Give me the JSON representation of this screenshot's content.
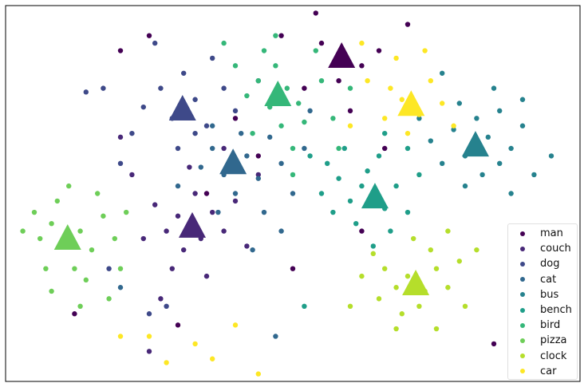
{
  "chart_data": {
    "type": "scatter",
    "title": "",
    "xlabel": "",
    "ylabel": "",
    "xlim": [
      0,
      100
    ],
    "ylim": [
      0,
      100
    ],
    "axes_ticks": false,
    "grid": false,
    "legend_placement": "lower-right",
    "centroid_marker": "triangle",
    "series": [
      {
        "name": "man",
        "color": "#440154",
        "centroid": [
          58.5,
          86.2
        ],
        "points": [
          [
            58,
            80
          ],
          [
            55,
            90
          ],
          [
            62,
            84
          ],
          [
            52,
            78
          ],
          [
            60,
            72
          ],
          [
            48,
            92
          ],
          [
            65,
            88
          ],
          [
            40,
            70
          ],
          [
            20,
            88
          ],
          [
            25,
            92
          ],
          [
            70,
            95
          ],
          [
            44,
            60
          ],
          [
            30,
            15
          ],
          [
            62,
            40
          ],
          [
            85,
            10
          ],
          [
            12,
            18
          ],
          [
            54,
            98
          ],
          [
            35,
            50
          ],
          [
            66,
            62
          ],
          [
            50,
            30
          ]
        ]
      },
      {
        "name": "couch",
        "color": "#482878",
        "centroid": [
          32.5,
          41.0
        ],
        "points": [
          [
            30,
            44
          ],
          [
            34,
            38
          ],
          [
            28,
            40
          ],
          [
            36,
            45
          ],
          [
            31,
            35
          ],
          [
            26,
            47
          ],
          [
            38,
            40
          ],
          [
            33,
            50
          ],
          [
            24,
            38
          ],
          [
            29,
            30
          ],
          [
            40,
            48
          ],
          [
            22,
            55
          ],
          [
            35,
            28
          ],
          [
            42,
            36
          ],
          [
            27,
            22
          ],
          [
            44,
            55
          ],
          [
            20,
            65
          ],
          [
            38,
            62
          ],
          [
            32,
            57
          ],
          [
            25,
            8
          ]
        ]
      },
      {
        "name": "dog",
        "color": "#3e4989",
        "centroid": [
          30.8,
          72.2
        ],
        "points": [
          [
            29,
            70
          ],
          [
            33,
            75
          ],
          [
            27,
            78
          ],
          [
            35,
            68
          ],
          [
            24,
            73
          ],
          [
            31,
            82
          ],
          [
            38,
            78
          ],
          [
            22,
            66
          ],
          [
            30,
            62
          ],
          [
            36,
            86
          ],
          [
            17,
            78
          ],
          [
            14,
            77
          ],
          [
            26,
            90
          ],
          [
            40,
            72
          ],
          [
            20,
            58
          ],
          [
            28,
            20
          ],
          [
            25,
            18
          ],
          [
            33,
            66
          ],
          [
            44,
            80
          ],
          [
            18,
            30
          ]
        ]
      },
      {
        "name": "cat",
        "color": "#31688e",
        "centroid": [
          39.6,
          57.9
        ],
        "points": [
          [
            38,
            55
          ],
          [
            42,
            60
          ],
          [
            36,
            62
          ],
          [
            44,
            54
          ],
          [
            40,
            50
          ],
          [
            46,
            65
          ],
          [
            34,
            57
          ],
          [
            48,
            58
          ],
          [
            41,
            66
          ],
          [
            50,
            50
          ],
          [
            37,
            45
          ],
          [
            45,
            45
          ],
          [
            52,
            62
          ],
          [
            30,
            52
          ],
          [
            48,
            40
          ],
          [
            43,
            35
          ],
          [
            53,
            72
          ],
          [
            36,
            68
          ],
          [
            20,
            25
          ],
          [
            47,
            12
          ]
        ]
      },
      {
        "name": "bus",
        "color": "#26828e",
        "centroid": [
          81.8,
          62.6
        ],
        "points": [
          [
            80,
            60
          ],
          [
            84,
            65
          ],
          [
            78,
            67
          ],
          [
            86,
            58
          ],
          [
            82,
            70
          ],
          [
            88,
            62
          ],
          [
            76,
            58
          ],
          [
            90,
            68
          ],
          [
            83,
            55
          ],
          [
            79,
            74
          ],
          [
            92,
            55
          ],
          [
            86,
            72
          ],
          [
            74,
            64
          ],
          [
            88,
            50
          ],
          [
            95,
            60
          ],
          [
            80,
            52
          ],
          [
            72,
            70
          ],
          [
            85,
            78
          ],
          [
            76,
            82
          ],
          [
            90,
            75
          ]
        ]
      },
      {
        "name": "bench",
        "color": "#1f9e89",
        "centroid": [
          64.3,
          48.8
        ],
        "points": [
          [
            62,
            52
          ],
          [
            66,
            46
          ],
          [
            60,
            48
          ],
          [
            68,
            52
          ],
          [
            63,
            56
          ],
          [
            58,
            54
          ],
          [
            70,
            45
          ],
          [
            65,
            60
          ],
          [
            56,
            58
          ],
          [
            61,
            42
          ],
          [
            67,
            40
          ],
          [
            55,
            50
          ],
          [
            72,
            55
          ],
          [
            59,
            62
          ],
          [
            64,
            36
          ],
          [
            53,
            60
          ],
          [
            70,
            62
          ],
          [
            57,
            45
          ],
          [
            66,
            66
          ],
          [
            52,
            20
          ]
        ]
      },
      {
        "name": "bird",
        "color": "#35b779",
        "centroid": [
          47.4,
          76.0
        ],
        "points": [
          [
            46,
            73
          ],
          [
            49,
            78
          ],
          [
            44,
            80
          ],
          [
            51,
            74
          ],
          [
            47,
            84
          ],
          [
            52,
            69
          ],
          [
            42,
            76
          ],
          [
            55,
            80
          ],
          [
            48,
            68
          ],
          [
            45,
            88
          ],
          [
            50,
            62
          ],
          [
            40,
            84
          ],
          [
            54,
            88
          ],
          [
            57,
            70
          ],
          [
            43,
            66
          ],
          [
            50,
            55
          ],
          [
            47,
            92
          ],
          [
            38,
            90
          ],
          [
            58,
            62
          ],
          [
            60,
            78
          ]
        ]
      },
      {
        "name": "pizza",
        "color": "#6ece58",
        "centroid": [
          10.8,
          37.8
        ],
        "points": [
          [
            10,
            36
          ],
          [
            13,
            40
          ],
          [
            8,
            42
          ],
          [
            15,
            35
          ],
          [
            12,
            30
          ],
          [
            6,
            38
          ],
          [
            17,
            44
          ],
          [
            9,
            48
          ],
          [
            14,
            27
          ],
          [
            19,
            38
          ],
          [
            5,
            45
          ],
          [
            11,
            52
          ],
          [
            18,
            22
          ],
          [
            7,
            30
          ],
          [
            16,
            50
          ],
          [
            20,
            30
          ],
          [
            3,
            40
          ],
          [
            13,
            20
          ],
          [
            8,
            24
          ],
          [
            21,
            45
          ]
        ]
      },
      {
        "name": "clock",
        "color": "#b5de2b",
        "centroid": [
          71.4,
          25.7
        ],
        "points": [
          [
            70,
            28
          ],
          [
            73,
            24
          ],
          [
            68,
            25
          ],
          [
            75,
            30
          ],
          [
            72,
            20
          ],
          [
            66,
            30
          ],
          [
            77,
            25
          ],
          [
            69,
            18
          ],
          [
            74,
            35
          ],
          [
            64,
            34
          ],
          [
            79,
            32
          ],
          [
            71,
            38
          ],
          [
            80,
            20
          ],
          [
            65,
            22
          ],
          [
            77,
            40
          ],
          [
            62,
            28
          ],
          [
            82,
            35
          ],
          [
            68,
            14
          ],
          [
            75,
            14
          ],
          [
            60,
            20
          ]
        ]
      },
      {
        "name": "car",
        "color": "#fde725",
        "centroid": [
          70.6,
          73.4
        ],
        "points": [
          [
            69,
            75
          ],
          [
            72,
            71
          ],
          [
            67,
            78
          ],
          [
            74,
            80
          ],
          [
            70,
            66
          ],
          [
            66,
            70
          ],
          [
            76,
            74
          ],
          [
            68,
            86
          ],
          [
            73,
            88
          ],
          [
            63,
            80
          ],
          [
            78,
            68
          ],
          [
            28,
            5
          ],
          [
            33,
            10
          ],
          [
            25,
            12
          ],
          [
            36,
            6
          ],
          [
            40,
            15
          ],
          [
            60,
            68
          ],
          [
            62,
            90
          ],
          [
            44,
            2
          ],
          [
            20,
            12
          ]
        ]
      }
    ]
  }
}
